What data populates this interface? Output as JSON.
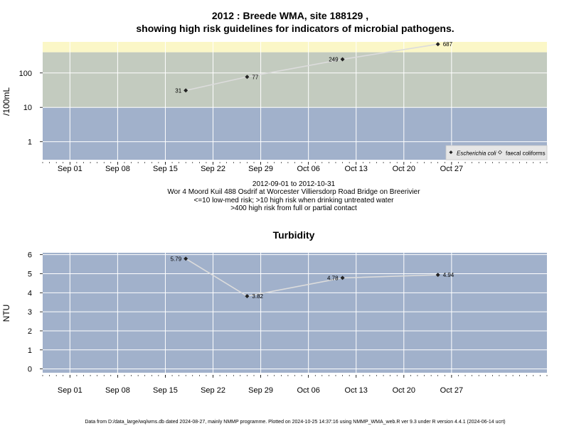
{
  "page": {
    "title_line1": "2012 : Breede WMA, site 188129 ,",
    "title_line2": "showing high risk guidelines for indicators of microbial pathogens.",
    "subtitle_lines": [
      "2012-09-01 to 2012-10-31",
      "Wor 4 Moord Kuil 488 Osdrif at Worcester Villiersdorp Road Bridge on Breerivier",
      "<=10 low-med risk; >10 high risk when drinking untreated water",
      ">400 high risk from full or partial contact"
    ],
    "footer": "Data from D:/data_large/wq/wms.db dated 2024-08-27, mainly NMMP programme. Plotted on 2024-10-25 14:37:16 using NMMP_WMA_web.R ver 9.3 under R version 4.4.1 (2024-06-14 ucrt)"
  },
  "chart_data": [
    {
      "type": "line",
      "title": "",
      "ylabel": "/100mL",
      "yscale": "log",
      "ylim": [
        0.3,
        800
      ],
      "xlim": [
        "2012-08-28",
        "2012-11-10"
      ],
      "x_ticks": [
        "Sep 01",
        "Sep 08",
        "Sep 15",
        "Sep 22",
        "Sep 29",
        "Oct 06",
        "Oct 13",
        "Oct 20",
        "Oct 27"
      ],
      "y_ticks": [
        {
          "value": 1,
          "label": "1"
        },
        {
          "value": 10,
          "label": "10"
        },
        {
          "value": 100,
          "label": "100"
        }
      ],
      "bands": [
        {
          "from": 0.3,
          "to": 10,
          "color": "#a1b1cb"
        },
        {
          "from": 10,
          "to": 400,
          "color": "#c3cbbf"
        },
        {
          "from": 400,
          "to": 800,
          "color": "#fbf7c7"
        }
      ],
      "series": [
        {
          "name": "Escherichia coli",
          "marker": "diamond",
          "color": "#222222",
          "line_color": "#dcdcdc",
          "points": [
            {
              "x": "2012-09-18",
              "y": 31,
              "label": "31",
              "label_side": "left"
            },
            {
              "x": "2012-09-27",
              "y": 77,
              "label": "77",
              "label_side": "right"
            },
            {
              "x": "2012-10-11",
              "y": 249,
              "label": "249",
              "label_side": "left"
            },
            {
              "x": "2012-10-25",
              "y": 687,
              "label": "687",
              "label_side": "right"
            }
          ]
        },
        {
          "name": "faecal coliforms",
          "marker": "open-diamond",
          "color": "#222222",
          "points": []
        }
      ],
      "legend": {
        "position": "bottom-right"
      }
    },
    {
      "type": "line",
      "title": "Turbidity",
      "ylabel": "NTU",
      "yscale": "linear",
      "ylim": [
        -0.2,
        6.1
      ],
      "xlim": [
        "2012-08-28",
        "2012-11-10"
      ],
      "x_ticks": [
        "Sep 01",
        "Sep 08",
        "Sep 15",
        "Sep 22",
        "Sep 29",
        "Oct 06",
        "Oct 13",
        "Oct 20",
        "Oct 27"
      ],
      "y_ticks": [
        {
          "value": 0,
          "label": "0"
        },
        {
          "value": 1,
          "label": "1"
        },
        {
          "value": 2,
          "label": "2"
        },
        {
          "value": 3,
          "label": "3"
        },
        {
          "value": 4,
          "label": "4"
        },
        {
          "value": 5,
          "label": "5"
        },
        {
          "value": 6,
          "label": "6"
        }
      ],
      "bands": [],
      "background": "#a1b1cb",
      "series": [
        {
          "name": "",
          "marker": "diamond",
          "color": "#222222",
          "line_color": "#dcdcdc",
          "points": [
            {
              "x": "2012-09-18",
              "y": 5.79,
              "label": "5.79",
              "label_side": "left"
            },
            {
              "x": "2012-09-27",
              "y": 3.82,
              "label": "3.82",
              "label_side": "right"
            },
            {
              "x": "2012-10-11",
              "y": 4.78,
              "label": "4.78",
              "label_side": "left"
            },
            {
              "x": "2012-10-25",
              "y": 4.94,
              "label": "4.94",
              "label_side": "right"
            }
          ]
        }
      ]
    }
  ]
}
